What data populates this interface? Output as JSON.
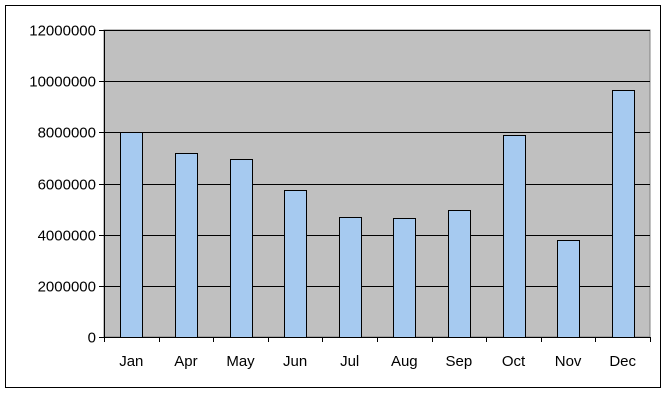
{
  "chart_data": {
    "type": "bar",
    "title": "",
    "xlabel": "",
    "ylabel": "",
    "categories": [
      "Jan",
      "Apr",
      "May",
      "Jun",
      "Jul",
      "Aug",
      "Sep",
      "Oct",
      "Nov",
      "Dec"
    ],
    "series": [
      {
        "values": [
          8000000,
          7200000,
          6950000,
          5750000,
          4700000,
          4650000,
          4950000,
          7900000,
          3800000,
          9650000
        ],
        "color": "#a6caf0"
      }
    ],
    "ylim": [
      0,
      12000000
    ],
    "yticks": [
      "0",
      "2000000",
      "4000000",
      "6000000",
      "8000000",
      "10000000",
      "12000000"
    ],
    "grid": true,
    "legend": "none",
    "colors": {
      "plot_background": "#c0c0c0",
      "bar_fill": "#a6caf0",
      "bar_stroke": "#000000",
      "gridline": "#000000",
      "outer_border": "#000000"
    }
  }
}
